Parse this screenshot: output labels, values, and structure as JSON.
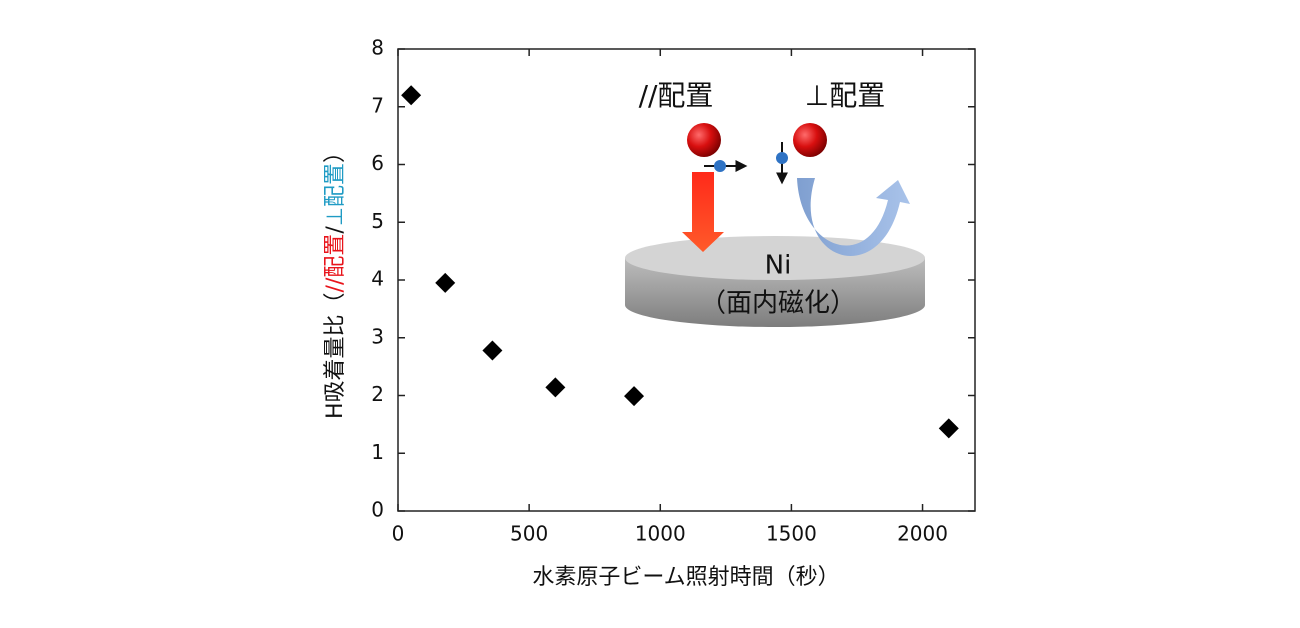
{
  "chart_data": {
    "type": "scatter",
    "x_label": "水素原子ビーム照射時間（秒）",
    "y_label_parts": [
      {
        "text": "H吸着量比（",
        "color": "#111111"
      },
      {
        "text": "//配置",
        "color": "#e8141b"
      },
      {
        "text": "/",
        "color": "#111111"
      },
      {
        "text": "⊥配置",
        "color": "#1f9bc4"
      },
      {
        "text": "）",
        "color": "#111111"
      }
    ],
    "x": [
      50,
      180,
      360,
      600,
      900,
      2100
    ],
    "values": [
      7.2,
      3.95,
      2.78,
      2.14,
      1.99,
      1.43
    ],
    "color": "#000000",
    "xlim": [
      0,
      2200
    ],
    "xticks": [
      0,
      500,
      1000,
      1500,
      2000
    ],
    "ylim": [
      0,
      8
    ],
    "yticks": [
      0,
      1,
      2,
      3,
      4,
      5,
      6,
      7,
      8
    ],
    "annotations": [
      "//配置",
      "⊥配置",
      "Ni",
      "（面内磁化）"
    ]
  }
}
